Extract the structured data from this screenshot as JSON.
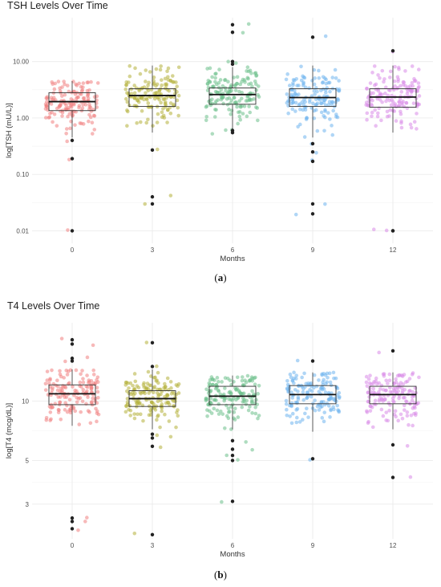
{
  "panel_captions": [
    {
      "open": "(",
      "letter": "a",
      "close": ")"
    },
    {
      "open": "(",
      "letter": "b",
      "close": ")"
    }
  ],
  "colors": {
    "month_0": "#f08080",
    "month_3": "#b5b13a",
    "month_6": "#6cc08b",
    "month_9": "#6fb5ee",
    "month_12": "#d98ae8",
    "outlier": "#222222",
    "box": "#333333",
    "grid": "#ebebeb"
  },
  "chart_data": [
    {
      "type": "box",
      "title": "TSH Levels Over Time",
      "xlabel": "Months",
      "ylabel": "log[TSH (mU/L)]",
      "y_scale": "log",
      "ylim": [
        0.006,
        60
      ],
      "yticks": [
        0.01,
        0.1,
        1,
        10
      ],
      "ytick_labels": [
        "0.01",
        "0.10",
        "1.00",
        "10.00"
      ],
      "categories": [
        "0",
        "3",
        "6",
        "9",
        "12"
      ],
      "grid": true,
      "boxes": [
        {
          "month": "0",
          "q1": 1.35,
          "median": 1.95,
          "q3": 2.8,
          "whisker_low": 0.45,
          "whisker_high": 4.5,
          "outliers": [
            0.4,
            0.19,
            0.01
          ]
        },
        {
          "month": "3",
          "q1": 1.6,
          "median": 2.5,
          "q3": 3.3,
          "whisker_low": 0.55,
          "whisker_high": 8.5,
          "outliers": [
            0.27,
            0.04,
            0.03
          ]
        },
        {
          "month": "6",
          "q1": 1.75,
          "median": 2.6,
          "q3": 3.4,
          "whisker_low": 0.6,
          "whisker_high": 8.0,
          "outliers": [
            10.0,
            9.0,
            45,
            33,
            0.6,
            0.55
          ]
        },
        {
          "month": "9",
          "q1": 1.6,
          "median": 2.3,
          "q3": 3.3,
          "whisker_low": 0.45,
          "whisker_high": 8.5,
          "outliers": [
            27,
            0.35,
            0.25,
            0.17,
            0.03,
            0.02
          ]
        },
        {
          "month": "12",
          "q1": 1.55,
          "median": 2.35,
          "q3": 3.3,
          "whisker_low": 0.55,
          "whisker_high": 8.5,
          "outliers": [
            15.5,
            0.01,
            0.01
          ]
        }
      ]
    },
    {
      "type": "box",
      "title": "T4 Levels Over Time",
      "xlabel": "Months",
      "ylabel": "log[T4 (mcg/dL)]",
      "y_scale": "log",
      "ylim": [
        2.0,
        25
      ],
      "yticks": [
        3,
        5,
        10
      ],
      "ytick_labels": [
        "3",
        "5",
        "10"
      ],
      "categories": [
        "0",
        "3",
        "6",
        "9",
        "12"
      ],
      "grid": true,
      "boxes": [
        {
          "month": "0",
          "q1": 9.6,
          "median": 10.9,
          "q3": 12.1,
          "whisker_low": 7.5,
          "whisker_high": 14.5,
          "outliers": [
            20.5,
            19.5,
            16.5,
            16.0,
            2.55,
            2.45,
            2.25
          ]
        },
        {
          "month": "3",
          "q1": 9.4,
          "median": 10.3,
          "q3": 11.3,
          "whisker_low": 7.2,
          "whisker_high": 14.5,
          "outliers": [
            19.8,
            15.0,
            6.8,
            6.5,
            5.9,
            2.1
          ]
        },
        {
          "month": "6",
          "q1": 9.6,
          "median": 10.6,
          "q3": 11.9,
          "whisker_low": 7.2,
          "whisker_high": 13.5,
          "outliers": [
            6.3,
            5.7,
            5.3,
            5.0,
            3.1
          ]
        },
        {
          "month": "9",
          "q1": 9.7,
          "median": 10.8,
          "q3": 12.0,
          "whisker_low": 7.0,
          "whisker_high": 14.0,
          "outliers": [
            16.0,
            5.1
          ]
        },
        {
          "month": "12",
          "q1": 9.7,
          "median": 10.8,
          "q3": 11.9,
          "whisker_low": 7.2,
          "whisker_high": 14.0,
          "outliers": [
            18.0,
            6.0,
            4.1
          ]
        }
      ]
    }
  ]
}
